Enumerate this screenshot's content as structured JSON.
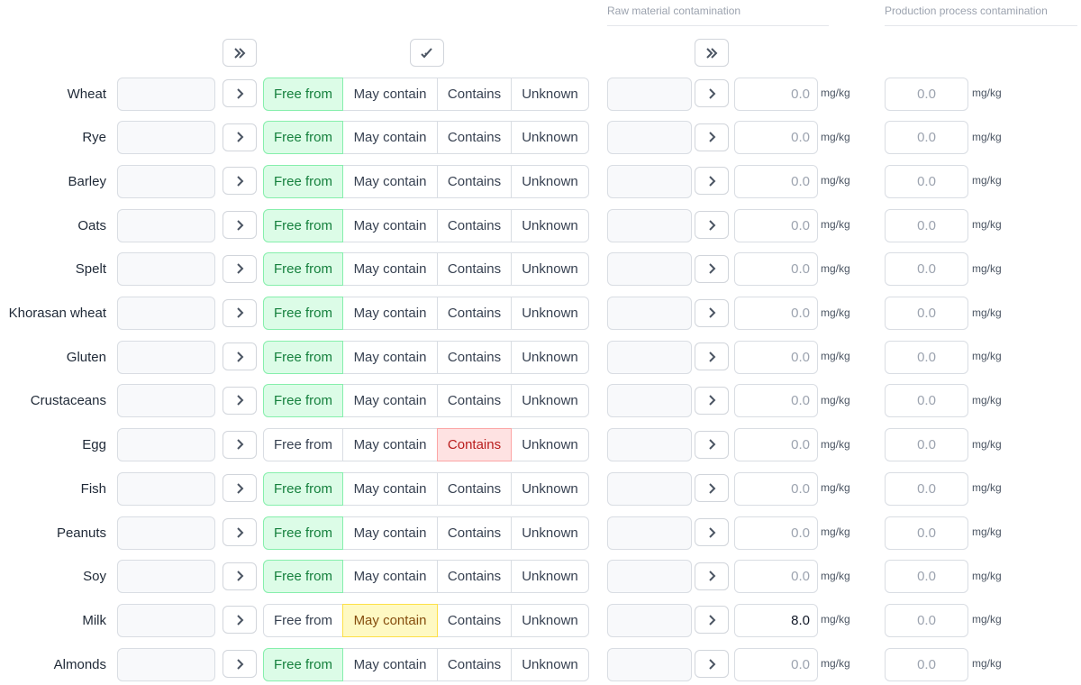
{
  "headers": {
    "raw": "Raw material contamination",
    "production": "Production process contamination"
  },
  "options": [
    "Free from",
    "May contain",
    "Contains",
    "Unknown"
  ],
  "unit": "mg/kg",
  "placeholder": "0.0",
  "rows": [
    {
      "name": "Wheat",
      "selected": "Free from",
      "raw": null,
      "production": null
    },
    {
      "name": "Rye",
      "selected": "Free from",
      "raw": null,
      "production": null
    },
    {
      "name": "Barley",
      "selected": "Free from",
      "raw": null,
      "production": null
    },
    {
      "name": "Oats",
      "selected": "Free from",
      "raw": null,
      "production": null
    },
    {
      "name": "Spelt",
      "selected": "Free from",
      "raw": null,
      "production": null
    },
    {
      "name": "Khorasan wheat",
      "selected": "Free from",
      "raw": null,
      "production": null
    },
    {
      "name": "Gluten",
      "selected": "Free from",
      "raw": null,
      "production": null
    },
    {
      "name": "Crustaceans",
      "selected": "Free from",
      "raw": null,
      "production": null
    },
    {
      "name": "Egg",
      "selected": "Contains",
      "raw": null,
      "production": null
    },
    {
      "name": "Fish",
      "selected": "Free from",
      "raw": null,
      "production": null
    },
    {
      "name": "Peanuts",
      "selected": "Free from",
      "raw": null,
      "production": null
    },
    {
      "name": "Soy",
      "selected": "Free from",
      "raw": null,
      "production": null
    },
    {
      "name": "Milk",
      "selected": "May contain",
      "raw": "8.0",
      "production": null
    },
    {
      "name": "Almonds",
      "selected": "Free from",
      "raw": null,
      "production": null
    }
  ]
}
